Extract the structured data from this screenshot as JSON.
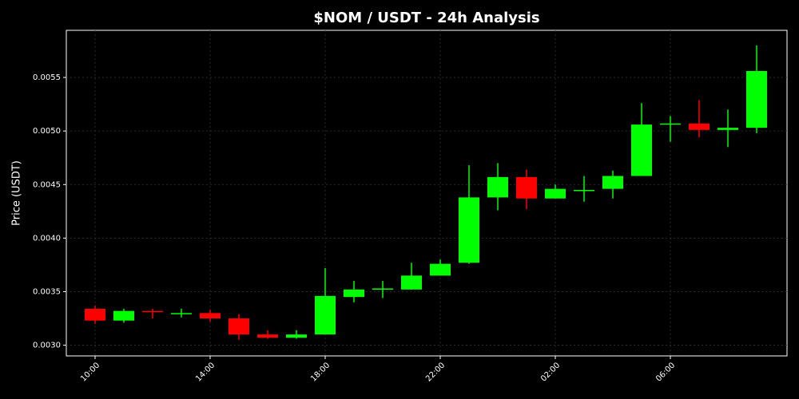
{
  "chart_data": {
    "type": "candlestick",
    "title": "$NOM / USDT - 24h Analysis",
    "y_label": "Price (USDT)",
    "categories": [
      "10:00",
      null,
      null,
      null,
      "14:00",
      null,
      null,
      null,
      "18:00",
      null,
      null,
      null,
      "22:00",
      null,
      null,
      null,
      "02:00",
      null,
      null,
      null,
      "06:00",
      null,
      null,
      null
    ],
    "open": [
      0.00334,
      0.00323,
      0.00332,
      0.00329,
      0.0033,
      0.00325,
      0.0031,
      0.00307,
      0.0031,
      0.00345,
      0.00352,
      0.00352,
      0.00365,
      0.00377,
      0.00438,
      0.00457,
      0.00437,
      0.00444,
      0.00446,
      0.00458,
      0.00506,
      0.00507,
      0.00501,
      0.00503
    ],
    "high": [
      0.00337,
      0.00334,
      0.00334,
      0.00334,
      0.00333,
      0.00329,
      0.00314,
      0.00314,
      0.00372,
      0.0036,
      0.0036,
      0.00377,
      0.0038,
      0.00468,
      0.0047,
      0.00464,
      0.0045,
      0.00458,
      0.00463,
      0.00526,
      0.00514,
      0.00529,
      0.0052,
      0.0058
    ],
    "low": [
      0.0032,
      0.00321,
      0.00325,
      0.00326,
      0.00322,
      0.00305,
      0.00306,
      0.00306,
      0.0031,
      0.0034,
      0.00344,
      0.00352,
      0.00365,
      0.00376,
      0.00426,
      0.00427,
      0.00437,
      0.00434,
      0.00437,
      0.00458,
      0.0049,
      0.00494,
      0.00485,
      0.00498
    ],
    "close": [
      0.00323,
      0.00332,
      0.00331,
      0.0033,
      0.00325,
      0.0031,
      0.00307,
      0.0031,
      0.00346,
      0.00352,
      0.00353,
      0.00365,
      0.00376,
      0.00438,
      0.00457,
      0.00437,
      0.00446,
      0.00445,
      0.00458,
      0.00506,
      0.00507,
      0.00501,
      0.00503,
      0.00556
    ],
    "up_color": "#00ff00",
    "down_color": "#ff0000",
    "ylim": [
      0.0029,
      0.00594
    ],
    "yticks": [
      {
        "value": 0.003,
        "label": "0.0030"
      },
      {
        "value": 0.0035,
        "label": "0.0035"
      },
      {
        "value": 0.004,
        "label": "0.0040"
      },
      {
        "value": 0.0045,
        "label": "0.0045"
      },
      {
        "value": 0.005,
        "label": "0.0050"
      },
      {
        "value": 0.0055,
        "label": "0.0055"
      }
    ],
    "grid": true
  }
}
